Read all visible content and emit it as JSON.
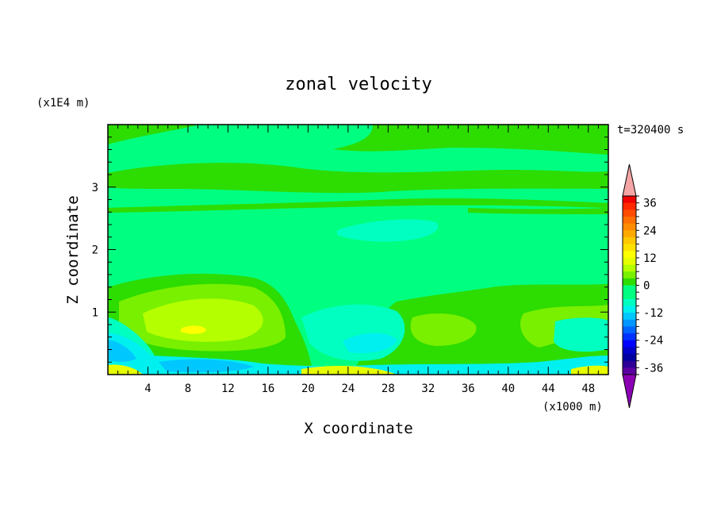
{
  "chart_data": {
    "type": "heatmap",
    "title": "zonal velocity",
    "time_label": "t=320400 s",
    "xlabel": "X coordinate",
    "ylabel": "Z coordinate",
    "x_unit": "(x1000 m)",
    "y_unit": "(x1E4 m)",
    "xlim": [
      0,
      50
    ],
    "ylim": [
      0,
      4
    ],
    "x_ticks": [
      "4",
      "8",
      "12",
      "16",
      "20",
      "24",
      "28",
      "32",
      "36",
      "40",
      "44",
      "48"
    ],
    "y_ticks": [
      "1",
      "2",
      "3"
    ],
    "colorbar": {
      "labels": [
        "36",
        "24",
        "12",
        "0",
        "-12",
        "-24",
        "-36"
      ],
      "levels": [
        -42,
        -39,
        -36,
        -33,
        -30,
        -27,
        -24,
        -21,
        -18,
        -15,
        -12,
        -9,
        -6,
        -3,
        0,
        3,
        6,
        9,
        12,
        15,
        18,
        21,
        24,
        27,
        30,
        33,
        36,
        39,
        42
      ],
      "colors": [
        "#8c00b4",
        "#5a00a0",
        "#2d0096",
        "#0000a0",
        "#0000c8",
        "#0000ff",
        "#0032ff",
        "#0064ff",
        "#0096ff",
        "#00c8ff",
        "#00f0f0",
        "#00ffc0",
        "#00ff80",
        "#00ff80",
        "#2ddc00",
        "#78f000",
        "#b4ff00",
        "#e6ff00",
        "#ffff00",
        "#ffe100",
        "#ffc800",
        "#ffaa00",
        "#ff8c00",
        "#ff6e00",
        "#ff4b00",
        "#ff2800",
        "#f00000",
        "#f5a5a5"
      ]
    },
    "bands": [
      {
        "level": 0,
        "color": "#00ff80"
      },
      {
        "level": 3,
        "color": "#2ddc00"
      },
      {
        "level": 6,
        "color": "#78f000"
      },
      {
        "level": 9,
        "color": "#b4ff00"
      },
      {
        "level": -3,
        "color": "#00ffc0"
      },
      {
        "level": -6,
        "color": "#00f0f0"
      },
      {
        "level": -12,
        "color": "#00c8ff"
      }
    ]
  }
}
